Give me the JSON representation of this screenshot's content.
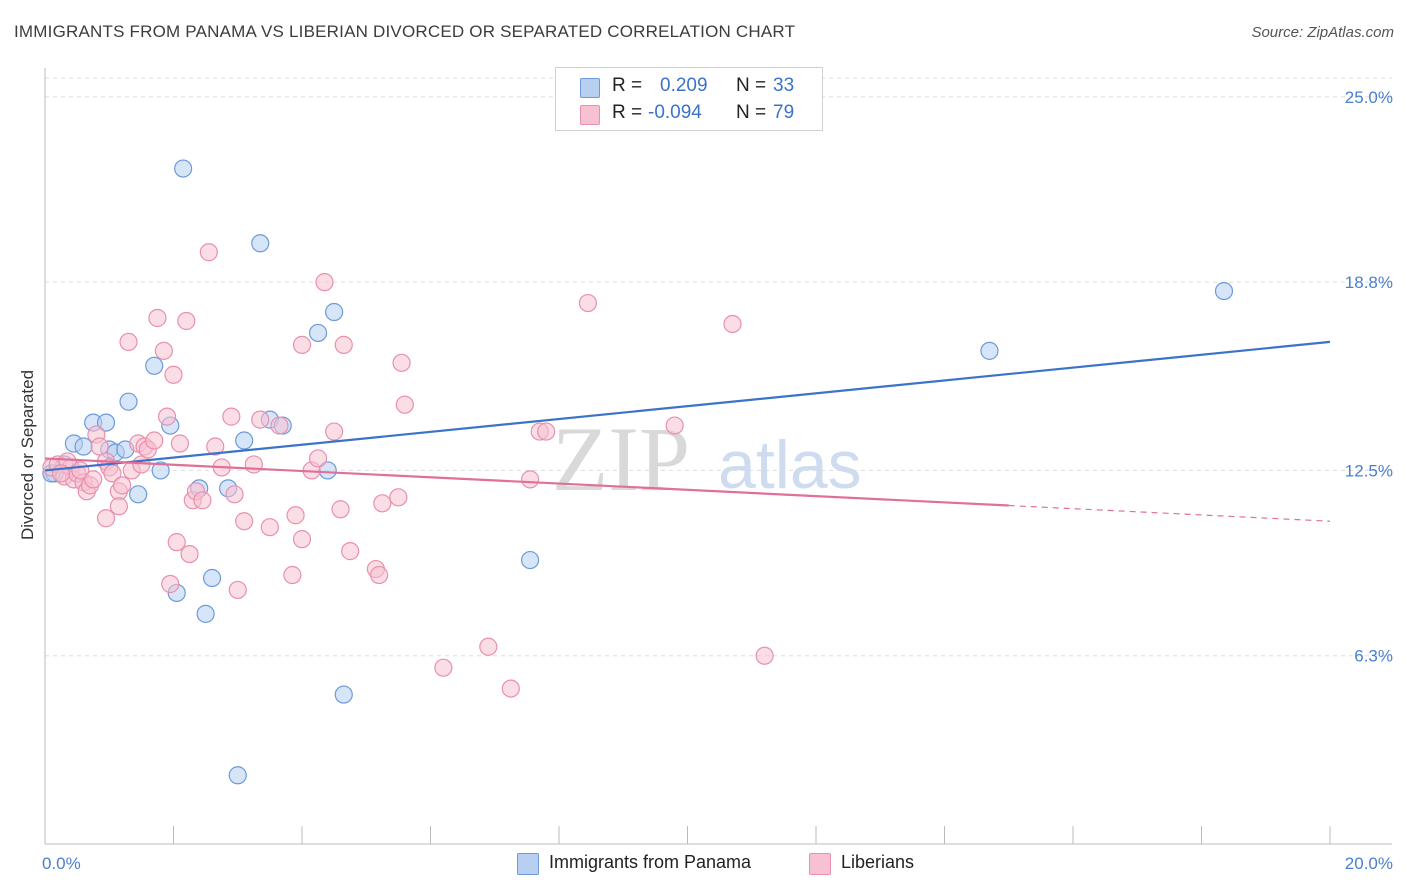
{
  "header": {
    "title": "IMMIGRANTS FROM PANAMA VS LIBERIAN DIVORCED OR SEPARATED CORRELATION CHART",
    "source": "Source: ZipAtlas.com"
  },
  "legend": {
    "rows": [
      {
        "r_label": "R =",
        "r_value": "0.209",
        "n_label": "N =",
        "n_value": "33"
      },
      {
        "r_label": "R =",
        "r_value": "-0.094",
        "n_label": "N =",
        "n_value": "79"
      }
    ]
  },
  "bottom_legend": {
    "items": [
      {
        "label": "Immigrants from Panama"
      },
      {
        "label": "Liberians"
      }
    ]
  },
  "watermark": {
    "zip": "ZIP",
    "atlas": "atlas"
  },
  "chart_data": {
    "type": "scatter",
    "title": "IMMIGRANTS FROM PANAMA VS LIBERIAN DIVORCED OR SEPARATED CORRELATION CHART",
    "xlabel": "",
    "ylabel": "Divorced or Separated",
    "xlim": [
      0,
      20
    ],
    "ylim": [
      0,
      26.5
    ],
    "x_tick_labels": [
      "0.0%",
      "20.0%"
    ],
    "y_ticks": [
      6.3,
      12.5,
      18.8,
      25.0
    ],
    "y_tick_labels": [
      "6.3%",
      "12.5%",
      "18.8%",
      "25.0%"
    ],
    "grid": true,
    "legend_position": "bottom-center",
    "colors": {
      "panama_fill": "#b7d0f2",
      "panama_stroke": "#6d9ad9",
      "panama_line": "#3a73c9",
      "liberian_fill": "#f7c1d2",
      "liberian_stroke": "#e890ad",
      "liberian_line": "#e0709a",
      "tick_text": "#4a7fd0",
      "grid": "#dddddd"
    },
    "series": [
      {
        "name": "Immigrants from Panama",
        "R": 0.209,
        "N": 33,
        "trend": {
          "x0": 0.0,
          "y0": 12.5,
          "x1": 20.0,
          "y1": 16.8,
          "dashed_from": null
        },
        "points": [
          [
            0.15,
            12.4
          ],
          [
            0.3,
            12.7
          ],
          [
            0.45,
            13.4
          ],
          [
            0.6,
            13.3
          ],
          [
            0.75,
            14.1
          ],
          [
            0.95,
            14.1
          ],
          [
            1.0,
            13.2
          ],
          [
            1.1,
            13.1
          ],
          [
            1.25,
            13.2
          ],
          [
            1.3,
            14.8
          ],
          [
            1.45,
            11.7
          ],
          [
            1.7,
            16.0
          ],
          [
            1.8,
            12.5
          ],
          [
            1.95,
            14.0
          ],
          [
            2.05,
            8.4
          ],
          [
            2.15,
            22.6
          ],
          [
            2.4,
            11.9
          ],
          [
            2.5,
            7.7
          ],
          [
            2.6,
            8.9
          ],
          [
            2.85,
            11.9
          ],
          [
            3.0,
            2.3
          ],
          [
            3.1,
            13.5
          ],
          [
            3.35,
            20.1
          ],
          [
            3.5,
            14.2
          ],
          [
            3.7,
            14.0
          ],
          [
            4.25,
            17.1
          ],
          [
            4.4,
            12.5
          ],
          [
            4.5,
            17.8
          ],
          [
            4.65,
            5.0
          ],
          [
            7.55,
            9.5
          ],
          [
            14.7,
            16.5
          ],
          [
            18.35,
            18.5
          ],
          [
            0.1,
            12.4
          ]
        ]
      },
      {
        "name": "Liberians",
        "R": -0.094,
        "N": 79,
        "trend": {
          "x0": 0.0,
          "y0": 12.9,
          "x1": 20.0,
          "y1": 10.8,
          "dashed_from": 15.0
        },
        "points": [
          [
            0.1,
            12.6
          ],
          [
            0.2,
            12.7
          ],
          [
            0.3,
            12.3
          ],
          [
            0.4,
            12.6
          ],
          [
            0.45,
            12.2
          ],
          [
            0.5,
            12.4
          ],
          [
            0.6,
            12.1
          ],
          [
            0.65,
            11.8
          ],
          [
            0.7,
            12.0
          ],
          [
            0.8,
            13.7
          ],
          [
            0.85,
            13.3
          ],
          [
            0.95,
            12.8
          ],
          [
            0.95,
            10.9
          ],
          [
            1.0,
            12.6
          ],
          [
            1.05,
            12.4
          ],
          [
            1.15,
            11.8
          ],
          [
            1.15,
            11.3
          ],
          [
            1.2,
            12.0
          ],
          [
            1.3,
            16.8
          ],
          [
            1.35,
            12.5
          ],
          [
            1.45,
            13.4
          ],
          [
            1.5,
            12.7
          ],
          [
            1.55,
            13.3
          ],
          [
            1.6,
            13.2
          ],
          [
            1.7,
            13.5
          ],
          [
            1.75,
            17.6
          ],
          [
            1.85,
            16.5
          ],
          [
            1.9,
            14.3
          ],
          [
            1.95,
            8.7
          ],
          [
            2.0,
            15.7
          ],
          [
            2.05,
            10.1
          ],
          [
            2.1,
            13.4
          ],
          [
            2.2,
            17.5
          ],
          [
            2.25,
            9.7
          ],
          [
            2.3,
            11.5
          ],
          [
            2.35,
            11.8
          ],
          [
            2.45,
            11.5
          ],
          [
            2.55,
            19.8
          ],
          [
            2.65,
            13.3
          ],
          [
            2.75,
            12.6
          ],
          [
            2.9,
            14.3
          ],
          [
            2.95,
            11.7
          ],
          [
            3.0,
            8.5
          ],
          [
            3.1,
            10.8
          ],
          [
            3.25,
            12.7
          ],
          [
            3.35,
            14.2
          ],
          [
            3.5,
            10.6
          ],
          [
            3.65,
            14.0
          ],
          [
            3.85,
            9.0
          ],
          [
            3.9,
            11.0
          ],
          [
            4.0,
            16.7
          ],
          [
            4.0,
            10.2
          ],
          [
            4.15,
            12.5
          ],
          [
            4.25,
            12.9
          ],
          [
            4.35,
            18.8
          ],
          [
            4.5,
            13.8
          ],
          [
            4.6,
            11.2
          ],
          [
            4.65,
            16.7
          ],
          [
            4.75,
            9.8
          ],
          [
            5.15,
            9.2
          ],
          [
            5.2,
            9.0
          ],
          [
            5.25,
            11.4
          ],
          [
            5.5,
            11.6
          ],
          [
            5.55,
            16.1
          ],
          [
            5.6,
            14.7
          ],
          [
            6.2,
            5.9
          ],
          [
            6.9,
            6.6
          ],
          [
            7.25,
            5.2
          ],
          [
            7.55,
            12.2
          ],
          [
            7.7,
            13.8
          ],
          [
            7.8,
            13.8
          ],
          [
            8.45,
            18.1
          ],
          [
            9.8,
            14.0
          ],
          [
            10.7,
            17.4
          ],
          [
            11.2,
            6.3
          ],
          [
            0.35,
            12.8
          ],
          [
            0.55,
            12.5
          ],
          [
            0.75,
            12.2
          ],
          [
            0.25,
            12.4
          ]
        ]
      }
    ]
  }
}
